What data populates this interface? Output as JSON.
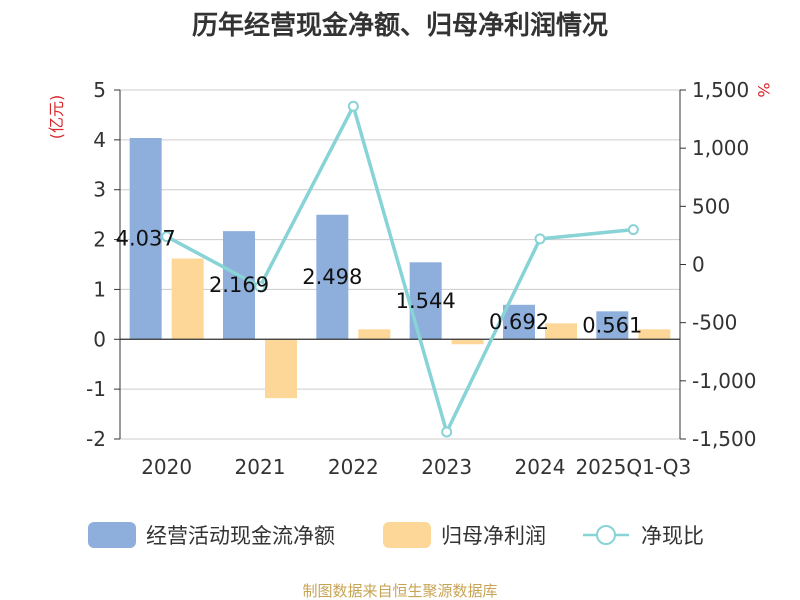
{
  "chart_data": {
    "type": "bar",
    "title": "历年经营现金净额、归母净利润情况",
    "left_unit": "(亿元)",
    "right_unit": "%",
    "categories": [
      "2020",
      "2021",
      "2022",
      "2023",
      "2024",
      "2025Q1-Q3"
    ],
    "y_left": {
      "min": -2,
      "max": 5,
      "ticks": [
        "5",
        "4",
        "3",
        "2",
        "1",
        "0",
        "-1",
        "-2"
      ]
    },
    "y_right": {
      "min": -1500,
      "max": 1500,
      "ticks": [
        "1,500",
        "1,000",
        "500",
        "0",
        "-500",
        "-1,000",
        "-1,500"
      ]
    },
    "series": [
      {
        "name": "经营活动现金流净额",
        "kind": "bar",
        "color": "#8eaedb",
        "values": [
          4.037,
          2.169,
          2.498,
          1.544,
          0.692,
          0.561
        ],
        "labels": [
          "4.037",
          "2.169",
          "2.498",
          "1.544",
          "0.692",
          "0.561"
        ]
      },
      {
        "name": "归母净利润",
        "kind": "bar",
        "color": "#fcd797",
        "values": [
          1.62,
          -1.18,
          0.2,
          -0.1,
          0.32,
          0.2
        ]
      },
      {
        "name": "净现比",
        "kind": "line",
        "axis": "right",
        "color": "#88d3d6",
        "values": [
          240,
          -190,
          1360,
          -1440,
          220,
          300
        ]
      }
    ],
    "grid": true,
    "legend_position": "bottom"
  },
  "source": "制图数据来自恒生聚源数据库",
  "colors": {
    "title": "#333333",
    "unit": "#d9272d",
    "source": "#c8a455",
    "grid": "#cccccc",
    "axis": "#333333"
  }
}
